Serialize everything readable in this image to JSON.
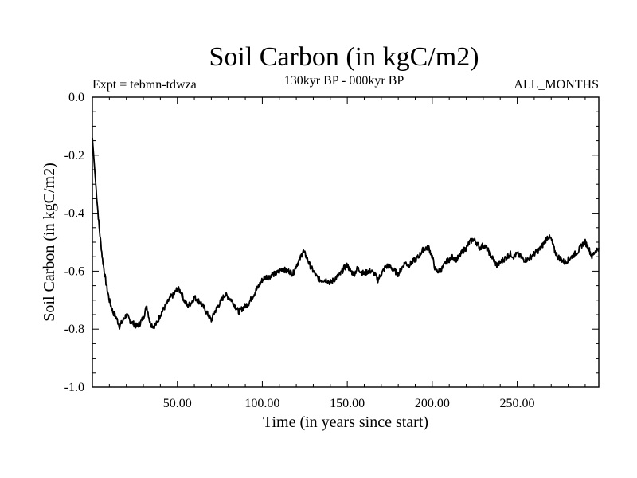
{
  "chart_data": {
    "type": "line",
    "title": "Soil Carbon (in kgC/m2)",
    "subtitle_left": "Expt = tebmn-tdwza",
    "subtitle_center": "130kyr BP - 000kyr BP",
    "subtitle_right": "ALL_MONTHS",
    "xlabel": "Time (in years since start)",
    "ylabel": "Soil Carbon (in kgC/m2)",
    "xlim": [
      0,
      298
    ],
    "ylim": [
      -1.0,
      0.0
    ],
    "x_ticks": [
      {
        "value": 50,
        "label": "50.00"
      },
      {
        "value": 100,
        "label": "100.00"
      },
      {
        "value": 150,
        "label": "150.00"
      },
      {
        "value": 200,
        "label": "200.00"
      },
      {
        "value": 250,
        "label": "250.00"
      }
    ],
    "y_ticks": [
      {
        "value": 0.0,
        "label": "0.0"
      },
      {
        "value": -0.2,
        "label": "-0.2"
      },
      {
        "value": -0.4,
        "label": "-0.4"
      },
      {
        "value": -0.6,
        "label": "-0.6"
      },
      {
        "value": -0.8,
        "label": "-0.8"
      },
      {
        "value": -1.0,
        "label": "-1.0"
      }
    ],
    "series": [
      {
        "name": "Soil Carbon",
        "color": "#000000",
        "x": [
          0,
          2,
          4,
          6,
          8,
          10,
          12,
          14,
          16,
          18,
          20,
          22,
          24,
          26,
          28,
          30,
          32,
          34,
          36,
          38,
          40,
          42,
          44,
          46,
          48,
          50,
          52,
          54,
          56,
          58,
          60,
          62,
          64,
          66,
          68,
          70,
          72,
          74,
          76,
          78,
          80,
          82,
          84,
          86,
          88,
          90,
          92,
          94,
          96,
          98,
          100,
          102,
          104,
          106,
          108,
          110,
          112,
          114,
          116,
          118,
          120,
          122,
          124,
          126,
          128,
          130,
          132,
          134,
          136,
          138,
          140,
          142,
          144,
          146,
          148,
          150,
          152,
          154,
          156,
          158,
          160,
          162,
          164,
          166,
          168,
          170,
          172,
          174,
          176,
          178,
          180,
          182,
          184,
          186,
          188,
          190,
          192,
          194,
          196,
          198,
          200,
          202,
          204,
          206,
          208,
          210,
          212,
          214,
          216,
          218,
          220,
          222,
          224,
          226,
          228,
          230,
          232,
          234,
          236,
          238,
          240,
          242,
          244,
          246,
          248,
          250,
          252,
          254,
          256,
          258,
          260,
          262,
          264,
          266,
          268,
          270,
          272,
          274,
          276,
          278,
          280,
          282,
          284,
          286,
          288,
          290,
          292,
          294,
          296,
          298
        ],
        "y": [
          -0.14,
          -0.3,
          -0.45,
          -0.56,
          -0.64,
          -0.7,
          -0.74,
          -0.76,
          -0.79,
          -0.77,
          -0.75,
          -0.77,
          -0.78,
          -0.79,
          -0.78,
          -0.76,
          -0.72,
          -0.78,
          -0.79,
          -0.78,
          -0.75,
          -0.73,
          -0.71,
          -0.69,
          -0.68,
          -0.66,
          -0.67,
          -0.7,
          -0.72,
          -0.71,
          -0.69,
          -0.7,
          -0.71,
          -0.73,
          -0.75,
          -0.77,
          -0.74,
          -0.72,
          -0.7,
          -0.68,
          -0.69,
          -0.7,
          -0.72,
          -0.74,
          -0.73,
          -0.72,
          -0.71,
          -0.69,
          -0.67,
          -0.65,
          -0.63,
          -0.62,
          -0.62,
          -0.61,
          -0.61,
          -0.6,
          -0.59,
          -0.6,
          -0.6,
          -0.61,
          -0.58,
          -0.56,
          -0.53,
          -0.55,
          -0.58,
          -0.6,
          -0.62,
          -0.63,
          -0.63,
          -0.63,
          -0.64,
          -0.63,
          -0.62,
          -0.61,
          -0.59,
          -0.58,
          -0.6,
          -0.61,
          -0.59,
          -0.6,
          -0.61,
          -0.6,
          -0.6,
          -0.61,
          -0.63,
          -0.61,
          -0.59,
          -0.58,
          -0.59,
          -0.6,
          -0.61,
          -0.59,
          -0.57,
          -0.58,
          -0.57,
          -0.56,
          -0.55,
          -0.53,
          -0.52,
          -0.52,
          -0.55,
          -0.6,
          -0.6,
          -0.59,
          -0.57,
          -0.56,
          -0.55,
          -0.56,
          -0.55,
          -0.53,
          -0.52,
          -0.5,
          -0.49,
          -0.5,
          -0.52,
          -0.51,
          -0.52,
          -0.54,
          -0.56,
          -0.58,
          -0.57,
          -0.56,
          -0.55,
          -0.54,
          -0.55,
          -0.54,
          -0.55,
          -0.56,
          -0.56,
          -0.55,
          -0.54,
          -0.53,
          -0.52,
          -0.5,
          -0.48,
          -0.49,
          -0.53,
          -0.55,
          -0.56,
          -0.57,
          -0.56,
          -0.55,
          -0.54,
          -0.53,
          -0.51,
          -0.5,
          -0.52,
          -0.55,
          -0.53,
          -0.52
        ]
      }
    ]
  }
}
